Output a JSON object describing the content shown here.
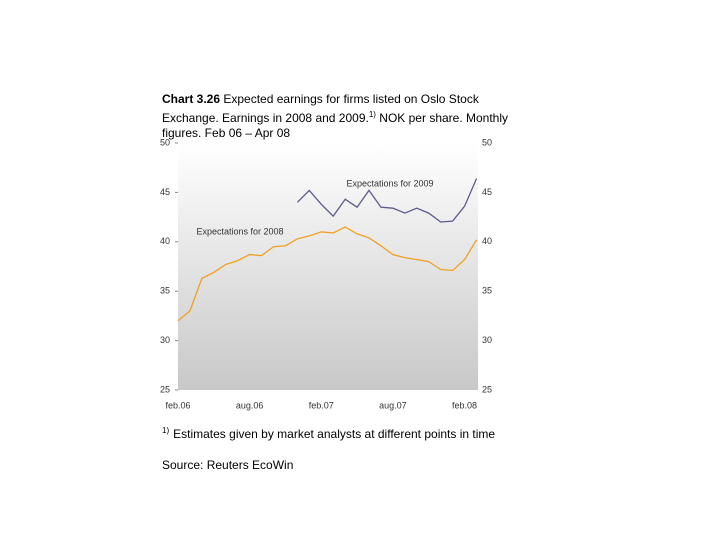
{
  "chart_data": {
    "type": "line",
    "title_label": "Chart 3.26",
    "title": "Expected earnings for firms listed on Oslo Stock Exchange. Earnings in 2008 and 2009.",
    "title_note": "1)",
    "subtitle": "NOK per share. Monthly figures. Feb 06 – Apr 08",
    "footnote_mark": "1)",
    "footnote": "Estimates given by market analysts at different points in time",
    "source": "Source: Reuters EcoWin",
    "categories": [
      "feb.06",
      null,
      null,
      null,
      null,
      null,
      "aug.06",
      null,
      null,
      null,
      null,
      null,
      "feb.07",
      null,
      null,
      null,
      null,
      null,
      "aug.07",
      null,
      null,
      null,
      null,
      null,
      "feb.08",
      null
    ],
    "series": [
      {
        "name": "Expectations for 2009",
        "color": "#5a5a8c",
        "values": [
          null,
          null,
          null,
          null,
          null,
          null,
          null,
          null,
          null,
          null,
          44,
          45.2,
          43.8,
          42.6,
          44.3,
          43.5,
          45.2,
          43.5,
          43.4,
          42.9,
          43.4,
          42.9,
          42,
          42.1,
          43.6,
          46.4
        ]
      },
      {
        "name": "Expectations for 2008",
        "color": "#f0a020",
        "values": [
          32,
          33,
          36.3,
          36.9,
          37.7,
          38.1,
          38.7,
          38.6,
          39.5,
          39.6,
          40.3,
          40.6,
          41,
          40.9,
          41.5,
          40.8,
          40.4,
          39.6,
          38.7,
          38.4,
          38.2,
          38,
          37.2,
          37.1,
          38.2,
          40.2
        ]
      }
    ],
    "ylim": [
      25,
      50
    ],
    "yticks": [
      25,
      30,
      35,
      40,
      45,
      50
    ],
    "y2lim": [
      25,
      50
    ],
    "y2ticks": [
      25,
      30,
      35,
      40,
      45,
      50
    ]
  }
}
